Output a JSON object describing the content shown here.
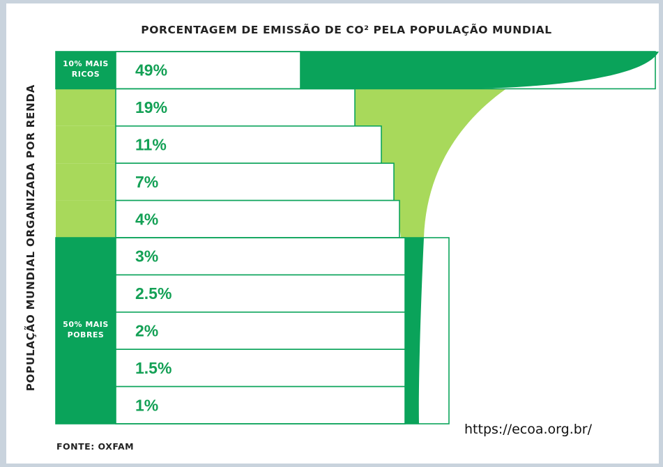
{
  "chart_data": {
    "type": "bar",
    "title": "PORCENTAGEM DE EMISSÃO DE CO² PELA POPULAÇÃO MUNDIAL",
    "ylabel": "POPULAÇÃO MUNDIAL ORGANIZADA POR RENDA",
    "xlabel": "",
    "categories": [
      "10% MAIS RICOS",
      "",
      "",
      "",
      "",
      "",
      "",
      "50% MAIS POBRES",
      "",
      ""
    ],
    "values": [
      49,
      19,
      11,
      7,
      4,
      3,
      2.5,
      2,
      1.5,
      1
    ],
    "value_labels": [
      "49%",
      "19%",
      "11%",
      "7%",
      "4%",
      "3%",
      "2.5%",
      "2%",
      "1.5%",
      "1%"
    ],
    "group_labels": [
      {
        "lines": [
          "10% MAIS",
          "RICOS"
        ]
      },
      {
        "lines": [
          "50% MAIS",
          "POBRES"
        ]
      }
    ],
    "colors": {
      "dark_green": "#0aa35a",
      "light_green": "#a8d95b",
      "text_green": "#13a055",
      "border": "#0aa35a"
    }
  },
  "source": "FONTE: OXFAM",
  "url": "https://ecoa.org.br/"
}
